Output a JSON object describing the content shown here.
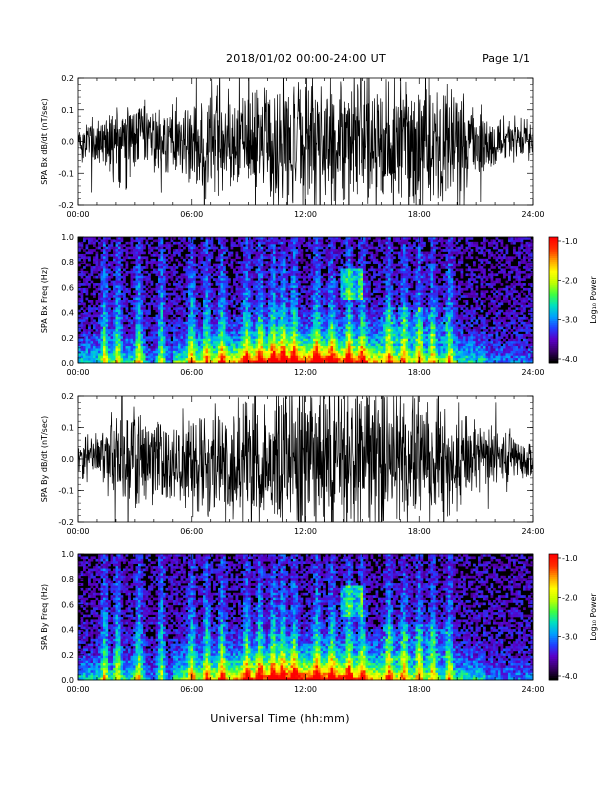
{
  "header": {
    "title": "2018/01/02  00:00-24:00 UT",
    "page": "Page 1/1"
  },
  "xaxis_title": "Universal Time (hh:mm)",
  "colors": {
    "trace": "#000000",
    "colormap": [
      "#000000",
      "#3a006a",
      "#5a00c8",
      "#2040ff",
      "#00a0ff",
      "#00e0c0",
      "#40ff40",
      "#c0ff00",
      "#ffff00",
      "#ffa000",
      "#ff3000",
      "#ff0000"
    ]
  },
  "chart_data": [
    {
      "type": "line",
      "ylabel": "SPA Bx dB/dt (nT/sec)",
      "x_ticks": [
        "00:00",
        "06:00",
        "12:00",
        "18:00",
        "24:00"
      ],
      "y_ticks": [
        "0.2",
        "0.1",
        "0.0",
        "-0.1",
        "-0.2"
      ],
      "ylim": [
        -0.2,
        0.2
      ],
      "xlim_hours": [
        0,
        24
      ],
      "amplitude_envelope": {
        "hours": [
          0,
          1,
          2,
          3,
          4,
          5,
          6,
          7,
          8,
          9,
          10,
          11,
          12,
          13,
          14,
          15,
          16,
          17,
          18,
          19,
          20,
          21,
          22,
          23,
          24
        ],
        "values": [
          0.05,
          0.07,
          0.12,
          0.11,
          0.09,
          0.09,
          0.12,
          0.14,
          0.15,
          0.15,
          0.16,
          0.17,
          0.17,
          0.17,
          0.18,
          0.2,
          0.2,
          0.19,
          0.17,
          0.16,
          0.13,
          0.1,
          0.08,
          0.06,
          0.05
        ]
      }
    },
    {
      "type": "heatmap",
      "ylabel": "SPA Bx Freq (Hz)",
      "colorbar_label": "Log₁₀ Power",
      "x_ticks": [
        "00:00",
        "06:00",
        "12:00",
        "18:00",
        "24:00"
      ],
      "y_ticks": [
        "1.0",
        "0.8",
        "0.6",
        "0.4",
        "0.2",
        "0.0"
      ],
      "ylim": [
        0.0,
        1.0
      ],
      "colorbar_ticks": [
        "-1.0",
        "-2.0",
        "-3.0",
        "-4.0"
      ],
      "clim": [
        -4.0,
        -1.0
      ]
    },
    {
      "type": "line",
      "ylabel": "SPA By dB/dt (nT/sec)",
      "x_ticks": [
        "00:00",
        "06:00",
        "12:00",
        "18:00",
        "24:00"
      ],
      "y_ticks": [
        "0.2",
        "0.1",
        "0.0",
        "-0.1",
        "-0.2"
      ],
      "ylim": [
        -0.2,
        0.2
      ],
      "xlim_hours": [
        0,
        24
      ],
      "amplitude_envelope": {
        "hours": [
          0,
          1,
          2,
          3,
          4,
          5,
          6,
          7,
          8,
          9,
          10,
          11,
          12,
          13,
          14,
          15,
          16,
          17,
          18,
          19,
          20,
          21,
          22,
          23,
          24
        ],
        "values": [
          0.05,
          0.07,
          0.12,
          0.12,
          0.11,
          0.1,
          0.13,
          0.15,
          0.16,
          0.16,
          0.18,
          0.19,
          0.2,
          0.2,
          0.2,
          0.2,
          0.2,
          0.19,
          0.17,
          0.16,
          0.13,
          0.1,
          0.08,
          0.06,
          0.05
        ]
      }
    },
    {
      "type": "heatmap",
      "ylabel": "SPA By Freq (Hz)",
      "colorbar_label": "Log₁₀ Power",
      "x_ticks": [
        "00:00",
        "06:00",
        "12:00",
        "18:00",
        "24:00"
      ],
      "y_ticks": [
        "1.0",
        "0.8",
        "0.6",
        "0.4",
        "0.2",
        "0.0"
      ],
      "ylim": [
        0.0,
        1.0
      ],
      "colorbar_ticks": [
        "-1.0",
        "-2.0",
        "-3.0",
        "-4.0"
      ],
      "clim": [
        -4.0,
        -1.0
      ]
    }
  ]
}
